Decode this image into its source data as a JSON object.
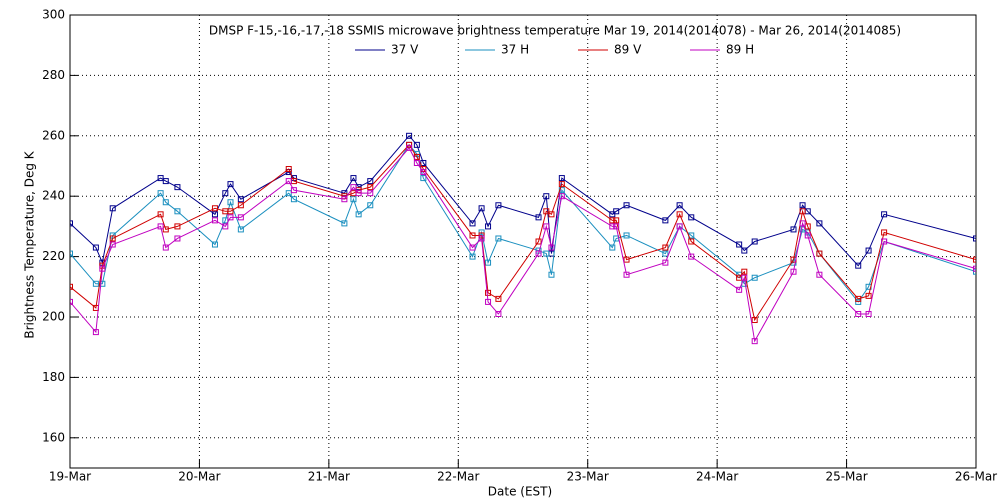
{
  "chart_data": {
    "type": "line",
    "title": "DMSP F-15,-16,-17,-18 SSMIS microwave brightness temperature Mar 19, 2014(2014078) - Mar 26, 2014(2014085)",
    "xlabel": "Date (EST)",
    "ylabel": "Brightness Temperature, Deg K",
    "x": [
      0,
      0.2,
      0.25,
      0.33,
      0.7,
      0.74,
      0.83,
      1.12,
      1.2,
      1.24,
      1.32,
      1.69,
      1.73,
      2.12,
      2.19,
      2.23,
      2.32,
      2.62,
      2.68,
      2.73,
      3.11,
      3.18,
      3.23,
      3.31,
      3.62,
      3.68,
      3.72,
      3.8,
      4.19,
      4.22,
      4.3,
      4.6,
      4.71,
      4.8,
      5.17,
      5.21,
      5.29,
      5.59,
      5.66,
      5.7,
      5.79,
      6.09,
      6.17,
      6.29,
      7.0
    ],
    "series": [
      {
        "name": "37 V",
        "color": "#00008b",
        "values": [
          231,
          223,
          218,
          236,
          246,
          245,
          243,
          234,
          241,
          244,
          239,
          248,
          246,
          241,
          246,
          243,
          245,
          260,
          257,
          251,
          231,
          236,
          230,
          237,
          233,
          240,
          221,
          246,
          234,
          235,
          237,
          232,
          237,
          233,
          224,
          222,
          225,
          229,
          237,
          235,
          231,
          217,
          222,
          234,
          226
        ]
      },
      {
        "name": "37 H",
        "color": "#1a8fbf",
        "values": [
          221,
          211,
          211,
          227,
          241,
          238,
          235,
          224,
          232,
          238,
          229,
          241,
          239,
          231,
          239,
          234,
          237,
          257,
          254,
          246,
          220,
          228,
          218,
          226,
          222,
          221,
          214,
          242,
          223,
          226,
          227,
          221,
          230,
          227,
          214,
          211,
          213,
          218,
          229,
          228,
          221,
          205,
          210,
          225,
          215
        ]
      },
      {
        "name": "89 V",
        "color": "#d00000",
        "values": [
          210,
          203,
          217,
          226,
          234,
          229,
          230,
          236,
          235,
          235,
          237,
          249,
          245,
          240,
          241,
          242,
          243,
          257,
          253,
          249,
          227,
          227,
          208,
          206,
          225,
          235,
          234,
          244,
          232,
          232,
          219,
          223,
          234,
          225,
          213,
          215,
          199,
          219,
          235,
          230,
          221,
          206,
          207,
          228,
          219
        ]
      },
      {
        "name": "89 H",
        "color": "#c000c0",
        "values": [
          205,
          195,
          216,
          224,
          230,
          223,
          226,
          232,
          230,
          233,
          233,
          245,
          242,
          239,
          243,
          241,
          241,
          256,
          251,
          248,
          223,
          226,
          205,
          201,
          221,
          230,
          223,
          240,
          230,
          230,
          214,
          218,
          230,
          220,
          209,
          213,
          192,
          215,
          231,
          227,
          214,
          201,
          201,
          225,
          216
        ]
      }
    ],
    "xlim": [
      0,
      7
    ],
    "xticks": [
      {
        "value": 0,
        "label": "19-Mar"
      },
      {
        "value": 1,
        "label": "20-Mar"
      },
      {
        "value": 2,
        "label": "21-Mar"
      },
      {
        "value": 3,
        "label": "22-Mar"
      },
      {
        "value": 4,
        "label": "23-Mar"
      },
      {
        "value": 5,
        "label": "24-Mar"
      },
      {
        "value": 6,
        "label": "25-Mar"
      },
      {
        "value": 7,
        "label": "26-Mar"
      }
    ],
    "ylim": [
      150,
      300
    ],
    "yticks": [
      160,
      180,
      200,
      220,
      240,
      260,
      280,
      300
    ],
    "grid": true,
    "legend": "top"
  }
}
